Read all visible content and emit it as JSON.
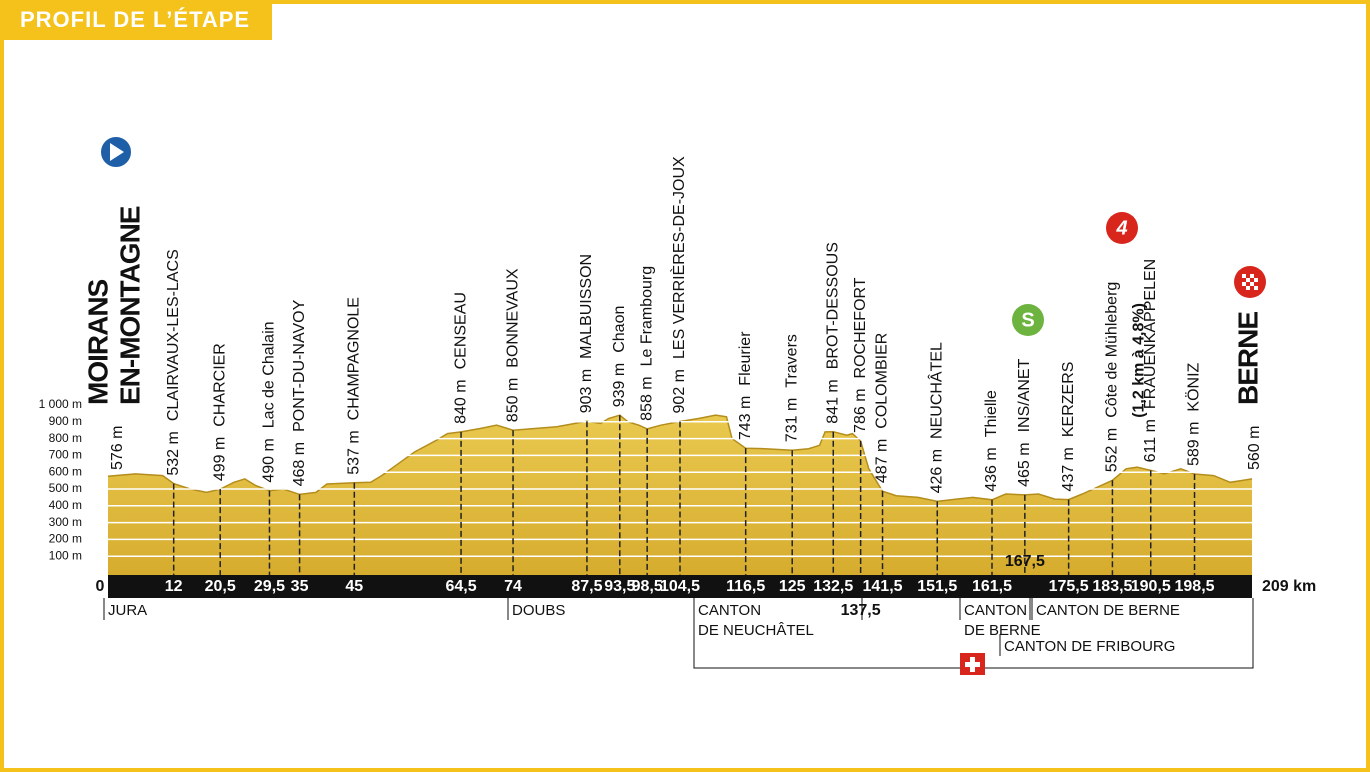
{
  "header": {
    "title": "PROFIL DE L’ÉTAPE"
  },
  "chart_data": {
    "type": "area",
    "color": "#e2bc3f",
    "x": [
      0,
      5,
      10,
      12,
      15,
      18,
      20.5,
      23,
      25,
      27,
      29.5,
      32,
      35,
      38,
      40,
      45,
      48,
      50,
      53,
      56,
      60,
      62,
      64.5,
      68,
      71,
      74,
      78,
      82,
      87.5,
      90,
      91.5,
      93.5,
      95,
      97,
      98.5,
      101,
      104.5,
      108,
      111,
      113,
      114,
      116.5,
      120,
      125,
      128,
      130,
      131,
      132.5,
      135,
      136,
      137.5,
      139,
      141.5,
      144,
      148,
      151.5,
      155,
      158,
      161.5,
      164,
      167.5,
      170,
      173,
      175.5,
      178,
      180,
      183.5,
      186,
      188,
      190.5,
      193,
      196,
      198.5,
      202,
      205,
      207,
      209
    ],
    "values": [
      576,
      590,
      580,
      532,
      500,
      480,
      499,
      540,
      560,
      520,
      490,
      500,
      468,
      480,
      530,
      537,
      540,
      580,
      650,
      720,
      790,
      830,
      840,
      860,
      880,
      850,
      860,
      870,
      903,
      890,
      920,
      939,
      900,
      880,
      858,
      880,
      902,
      920,
      940,
      930,
      800,
      743,
      740,
      731,
      740,
      760,
      840,
      841,
      820,
      830,
      786,
      620,
      487,
      460,
      450,
      426,
      440,
      450,
      436,
      470,
      465,
      470,
      440,
      437,
      470,
      500,
      552,
      620,
      630,
      611,
      590,
      620,
      589,
      580,
      540,
      550,
      560
    ],
    "xlim": [
      0,
      209
    ],
    "ylim": [
      0,
      1000
    ],
    "yticks": [
      {
        "value": 100,
        "label": "100 m"
      },
      {
        "value": 200,
        "label": "200 m"
      },
      {
        "value": 300,
        "label": "300 m"
      },
      {
        "value": 400,
        "label": "400 m"
      },
      {
        "value": 500,
        "label": "500 m"
      },
      {
        "value": 600,
        "label": "600 m"
      },
      {
        "value": 700,
        "label": "700 m"
      },
      {
        "value": 800,
        "label": "800 m"
      },
      {
        "value": 900,
        "label": "900 m"
      },
      {
        "value": 1000,
        "label": "1 000 m"
      }
    ],
    "grid": true,
    "waypoints": {
      "names": [
        [
          "MOIRANS",
          "EN-MONTAGNE"
        ],
        [
          "CLAIRVAUX-LES-LACS"
        ],
        [
          "CHARCIER"
        ],
        [
          "Lac de Chalain"
        ],
        [
          "PONT-DU-NAVOY"
        ],
        [
          "CHAMPAGNOLE"
        ],
        [
          "CENSEAU"
        ],
        [
          "BONNEVAUX"
        ],
        [
          "MALBUISSON"
        ],
        [
          "Chaon"
        ],
        [
          "Le Frambourg"
        ],
        [
          "LES VERRIÈRES-DE-JOUX"
        ],
        [
          "Fleurier"
        ],
        [
          "Travers"
        ],
        [
          "BROT-DESSOUS"
        ],
        [
          "ROCHEFORT"
        ],
        [
          "COLOMBIER"
        ],
        [
          "NEUCHÂTEL"
        ],
        [
          "Thielle"
        ],
        [
          "INS/ANET"
        ],
        [
          "KERZERS"
        ],
        [
          "Côte de Mühleberg",
          "(1,2 km à 4,8%)"
        ],
        [
          "FRAUENKAPPELEN"
        ],
        [
          "KÖNIZ"
        ],
        [
          "BERNE"
        ]
      ],
      "km": [
        0,
        12,
        {
          "value": 20.5,
          "label": "20,5"
        },
        {
          "value": 29.5,
          "label": "29,5"
        },
        35,
        45,
        {
          "value": 64.5,
          "label": "64,5"
        },
        74,
        {
          "value": 87.5,
          "label": "87,5"
        },
        {
          "value": 93.5,
          "label": "93,5"
        },
        {
          "value": 98.5,
          "label": "98,5"
        },
        {
          "value": 104.5,
          "label": "104,5"
        },
        {
          "value": 116.5,
          "label": "116,5"
        },
        125,
        {
          "value": 132.5,
          "label": "132,5"
        },
        {
          "value": 137.5,
          "label": "137,5"
        },
        {
          "value": 141.5,
          "label": "141,5"
        },
        {
          "value": 151.5,
          "label": "151,5"
        },
        {
          "value": 161.5,
          "label": "161,5"
        },
        {
          "value": 167.5,
          "label": "167,5"
        },
        {
          "value": 175.5,
          "label": "175,5"
        },
        {
          "value": 183.5,
          "label": "183,5"
        },
        {
          "value": 190.5,
          "label": "190,5"
        },
        {
          "value": 198.5,
          "label": "198,5"
        },
        {
          "value": 209,
          "label": "209 km"
        }
      ],
      "altitudes": [
        {
          "value": 576,
          "label": "576 m"
        },
        {
          "value": 532,
          "label": "532 m"
        },
        {
          "value": 499,
          "label": "499 m"
        },
        {
          "value": 490,
          "label": "490 m"
        },
        {
          "value": 468,
          "label": "468 m"
        },
        {
          "value": 537,
          "label": "537 m"
        },
        {
          "value": 840,
          "label": "840 m"
        },
        {
          "value": 850,
          "label": "850 m"
        },
        {
          "value": 903,
          "label": "903 m"
        },
        {
          "value": 939,
          "label": "939 m"
        },
        {
          "value": 858,
          "label": "858 m"
        },
        {
          "value": 902,
          "label": "902 m"
        },
        {
          "value": 743,
          "label": "743 m"
        },
        {
          "value": 731,
          "label": "731 m"
        },
        {
          "value": 841,
          "label": "841 m"
        },
        {
          "value": 786,
          "label": "786 m"
        },
        {
          "value": 487,
          "label": "487 m"
        },
        {
          "value": 426,
          "label": "426 m"
        },
        {
          "value": 436,
          "label": "436 m"
        },
        {
          "value": 465,
          "label": "465 m"
        },
        {
          "value": 437,
          "label": "437 m"
        },
        {
          "value": 552,
          "label": "552 m"
        },
        {
          "value": 611,
          "label": "611 m"
        },
        {
          "value": 589,
          "label": "589 m"
        },
        {
          "value": 560,
          "label": "560 m"
        }
      ]
    },
    "markers": {
      "sprint": "S",
      "climb": "4"
    },
    "regions": [
      [
        "JURA"
      ],
      [
        "DOUBS"
      ],
      [
        "CANTON",
        "DE NEUCHÂTEL"
      ],
      [
        "CANTON",
        "DE BERNE"
      ],
      [
        "CANTON DE BERNE"
      ],
      [
        "CANTON DE FRIBOURG"
      ]
    ]
  }
}
